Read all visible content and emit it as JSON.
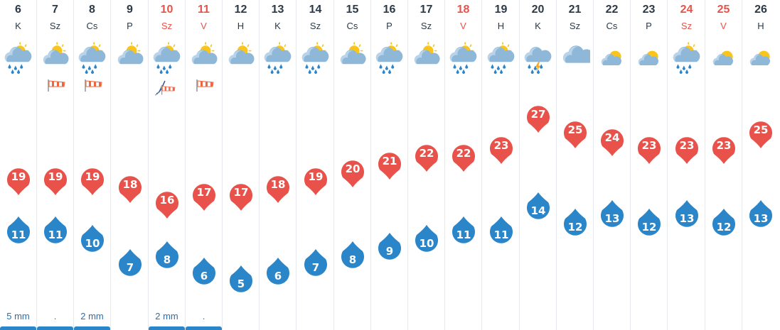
{
  "colors": {
    "high_pin": "#e8524a",
    "low_pin": "#2a85c9",
    "weekend_text": "#e8524a",
    "text": "#2c3a47",
    "precip_bar": "#2a85c9"
  },
  "chart_data": {
    "type": "line",
    "series": [
      {
        "values": [
          19,
          19,
          19,
          18,
          16,
          17,
          17,
          18,
          19,
          20,
          21,
          22,
          22,
          23,
          27,
          25,
          24,
          23,
          23,
          23,
          25
        ]
      },
      {
        "values": [
          11,
          11,
          10,
          7,
          8,
          6,
          5,
          6,
          7,
          8,
          9,
          10,
          11,
          11,
          14,
          12,
          13,
          12,
          13,
          12,
          13
        ]
      }
    ]
  },
  "days": [
    {
      "day": "6",
      "name": "K",
      "weekend": false,
      "icon": "sun-cloud-rain-icon",
      "wind": "",
      "high": "19",
      "low": "11",
      "precip": "5 mm",
      "bar": true
    },
    {
      "day": "7",
      "name": "Sz",
      "weekend": false,
      "icon": "sun-cloud-icon",
      "wind": "windsock-icon",
      "high": "19",
      "low": "11",
      "precip": ".",
      "bar": true
    },
    {
      "day": "8",
      "name": "Cs",
      "weekend": false,
      "icon": "sun-cloud-rain-icon",
      "wind": "windsock-icon",
      "high": "19",
      "low": "10",
      "precip": "2 mm",
      "bar": true
    },
    {
      "day": "9",
      "name": "P",
      "weekend": false,
      "icon": "sun-cloud-icon",
      "wind": "",
      "high": "18",
      "low": "7",
      "precip": "",
      "bar": false
    },
    {
      "day": "10",
      "name": "Sz",
      "weekend": true,
      "icon": "sun-cloud-rain-icon",
      "wind": "windsock-with-streak-icon",
      "high": "16",
      "low": "8",
      "precip": "2 mm",
      "bar": true
    },
    {
      "day": "11",
      "name": "V",
      "weekend": true,
      "icon": "sun-cloud-icon",
      "wind": "windsock-icon",
      "high": "17",
      "low": "6",
      "precip": ".",
      "bar": true
    },
    {
      "day": "12",
      "name": "H",
      "weekend": false,
      "icon": "sun-cloud-icon",
      "wind": "",
      "high": "17",
      "low": "5",
      "precip": "",
      "bar": false
    },
    {
      "day": "13",
      "name": "K",
      "weekend": false,
      "icon": "sun-cloud-rain-icon",
      "wind": "",
      "high": "18",
      "low": "6",
      "precip": "",
      "bar": false
    },
    {
      "day": "14",
      "name": "Sz",
      "weekend": false,
      "icon": "sun-cloud-rain-icon",
      "wind": "",
      "high": "19",
      "low": "7",
      "precip": "",
      "bar": false
    },
    {
      "day": "15",
      "name": "Cs",
      "weekend": false,
      "icon": "sun-cloud-icon",
      "wind": "",
      "high": "20",
      "low": "8",
      "precip": "",
      "bar": false
    },
    {
      "day": "16",
      "name": "P",
      "weekend": false,
      "icon": "sun-cloud-rain-icon",
      "wind": "",
      "high": "21",
      "low": "9",
      "precip": "",
      "bar": false
    },
    {
      "day": "17",
      "name": "Sz",
      "weekend": false,
      "icon": "sun-cloud-icon",
      "wind": "",
      "high": "22",
      "low": "10",
      "precip": "",
      "bar": false
    },
    {
      "day": "18",
      "name": "V",
      "weekend": true,
      "icon": "sun-cloud-rain-icon",
      "wind": "",
      "high": "22",
      "low": "11",
      "precip": "",
      "bar": false
    },
    {
      "day": "19",
      "name": "H",
      "weekend": false,
      "icon": "sun-cloud-rain-icon",
      "wind": "",
      "high": "23",
      "low": "11",
      "precip": "",
      "bar": false
    },
    {
      "day": "20",
      "name": "K",
      "weekend": false,
      "icon": "thunderstorm-icon",
      "wind": "",
      "high": "27",
      "low": "14",
      "precip": "",
      "bar": false
    },
    {
      "day": "21",
      "name": "Sz",
      "weekend": false,
      "icon": "cloud-icon",
      "wind": "",
      "high": "25",
      "low": "12",
      "precip": "",
      "bar": false
    },
    {
      "day": "22",
      "name": "Cs",
      "weekend": false,
      "icon": "sun-small-cloud-icon",
      "wind": "",
      "high": "24",
      "low": "13",
      "precip": "",
      "bar": false
    },
    {
      "day": "23",
      "name": "P",
      "weekend": false,
      "icon": "sun-small-cloud-icon",
      "wind": "",
      "high": "23",
      "low": "12",
      "precip": "",
      "bar": false
    },
    {
      "day": "24",
      "name": "Sz",
      "weekend": true,
      "icon": "sun-cloud-rain-icon",
      "wind": "",
      "high": "23",
      "low": "13",
      "precip": "",
      "bar": false
    },
    {
      "day": "25",
      "name": "V",
      "weekend": true,
      "icon": "sun-small-cloud-icon",
      "wind": "",
      "high": "23",
      "low": "12",
      "precip": "",
      "bar": false
    },
    {
      "day": "26",
      "name": "H",
      "weekend": false,
      "icon": "sun-small-cloud-icon",
      "wind": "",
      "high": "25",
      "low": "13",
      "precip": "",
      "bar": false
    }
  ]
}
